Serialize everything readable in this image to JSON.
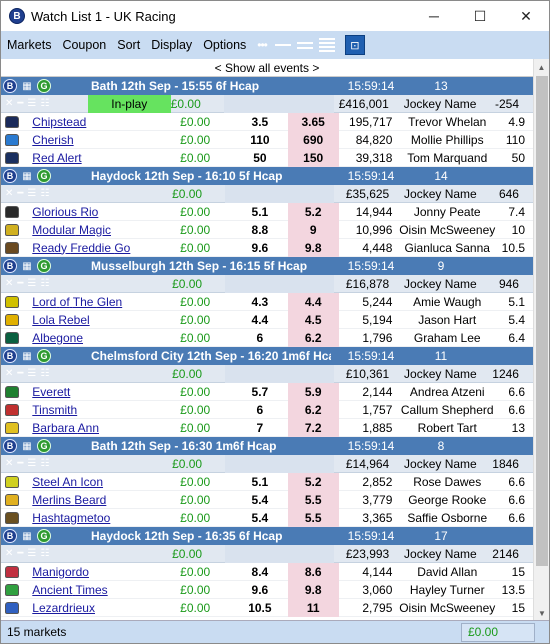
{
  "window": {
    "title": "Watch List 1 - UK Racing",
    "app_icon": "B",
    "minimize_glyph": "─",
    "maximize_glyph": "☐",
    "close_glyph": "✕"
  },
  "menu": [
    "Markets",
    "Coupon",
    "Sort",
    "Display",
    "Options"
  ],
  "toolbar": {
    "icons": [
      "dots-icon",
      "single-line-icon",
      "double-line-icon",
      "list-icon",
      "pin-icon"
    ],
    "pin_glyph": "⊡"
  },
  "show_all": "< Show all events >",
  "races": [
    {
      "name": "Bath 12th Sep - 15:55 6f Hcap",
      "time": "15:59:14",
      "count": "13",
      "in_play": "In-play",
      "pl": "£0.00",
      "matched": "£416,001",
      "jockey_header": "Jockey Name",
      "position": "-254",
      "runners": [
        {
          "name_parts": [
            "Chipstead"
          ],
          "pl": "£0.00",
          "back": "3.5",
          "lay": "3.65",
          "matched": "195,717",
          "jockey": "Trevor Whelan",
          "position": "4.9",
          "silk": "#1a2a5a"
        },
        {
          "name_parts": [
            "Cherish"
          ],
          "pl": "£0.00",
          "back": "110",
          "lay": "690",
          "matched": "84,820",
          "jockey": "Mollie Phillips",
          "position": "110",
          "silk": "#2a7ad0"
        },
        {
          "name_parts": [
            "Red",
            "Alert"
          ],
          "pl": "£0.00",
          "back": "50",
          "lay": "150",
          "matched": "39,318",
          "jockey": "Tom Marquand",
          "position": "50",
          "silk": "#1a3060"
        }
      ]
    },
    {
      "name": "Haydock 12th Sep - 16:10 5f Hcap",
      "time": "15:59:14",
      "count": "14",
      "in_play": "",
      "pl": "£0.00",
      "matched": "£35,625",
      "jockey_header": "Jockey Name",
      "position": "646",
      "runners": [
        {
          "name_parts": [
            "Glorious",
            "Rio"
          ],
          "pl": "£0.00",
          "back": "5.1",
          "lay": "5.2",
          "matched": "14,944",
          "jockey": "Jonny Peate",
          "position": "7.4",
          "silk": "#2a2a2a"
        },
        {
          "name_parts": [
            "Modular",
            "Magic"
          ],
          "pl": "£0.00",
          "back": "8.8",
          "lay": "9",
          "matched": "10,996",
          "jockey": "Oisin McSweeney",
          "position": "10",
          "silk": "#d0b020"
        },
        {
          "name_parts": [
            "Ready",
            "Freddie",
            "Go"
          ],
          "pl": "£0.00",
          "back": "9.6",
          "lay": "9.8",
          "matched": "4,448",
          "jockey": "Gianluca Sanna",
          "position": "10.5",
          "silk": "#6a4a20"
        }
      ]
    },
    {
      "name": "Musselburgh 12th Sep - 16:15 5f Hcap",
      "time": "15:59:14",
      "count": "9",
      "in_play": "",
      "pl": "£0.00",
      "matched": "£16,878",
      "jockey_header": "Jockey Name",
      "position": "946",
      "runners": [
        {
          "name_parts": [
            "Lord",
            "of",
            "The",
            "Glen"
          ],
          "pl": "£0.00",
          "back": "4.3",
          "lay": "4.4",
          "matched": "5,244",
          "jockey": "Amie Waugh",
          "position": "5.1",
          "silk": "#d0c000"
        },
        {
          "name_parts": [
            "Lola",
            "Rebel"
          ],
          "pl": "£0.00",
          "back": "4.4",
          "lay": "4.5",
          "matched": "5,194",
          "jockey": "Jason Hart",
          "position": "5.4",
          "silk": "#e0b000"
        },
        {
          "name_parts": [
            "Albegone"
          ],
          "pl": "£0.00",
          "back": "6",
          "lay": "6.2",
          "matched": "1,796",
          "jockey": "Graham Lee",
          "position": "6.4",
          "silk": "#0a6040"
        }
      ]
    },
    {
      "name": "Chelmsford City 12th Sep - 16:20 1m6f Hca",
      "time": "15:59:14",
      "count": "11",
      "in_play": "",
      "pl": "£0.00",
      "matched": "£10,361",
      "jockey_header": "Jockey Name",
      "position": "1246",
      "runners": [
        {
          "name_parts": [
            "Everett"
          ],
          "pl": "£0.00",
          "back": "5.7",
          "lay": "5.9",
          "matched": "2,144",
          "jockey": "Andrea Atzeni",
          "position": "6.6",
          "silk": "#208030"
        },
        {
          "name_parts": [
            "Tinsmith"
          ],
          "pl": "£0.00",
          "back": "6",
          "lay": "6.2",
          "matched": "1,757",
          "jockey": "Callum Shepherd",
          "position": "6.6",
          "silk": "#c03030"
        },
        {
          "name_parts": [
            "Barbara",
            "Ann"
          ],
          "pl": "£0.00",
          "back": "7",
          "lay": "7.2",
          "matched": "1,885",
          "jockey": "Robert Tart",
          "position": "13",
          "silk": "#e0c020"
        }
      ]
    },
    {
      "name": "Bath 12th Sep - 16:30 1m6f Hcap",
      "time": "15:59:14",
      "count": "8",
      "in_play": "",
      "pl": "£0.00",
      "matched": "£14,964",
      "jockey_header": "Jockey Name",
      "position": "1846",
      "runners": [
        {
          "name_parts": [
            "Steel",
            "An",
            "Icon"
          ],
          "pl": "£0.00",
          "back": "5.1",
          "lay": "5.2",
          "matched": "2,852",
          "jockey": "Rose Dawes",
          "position": "6.6",
          "silk": "#d0d020"
        },
        {
          "name_parts": [
            "Merlins",
            "Beard"
          ],
          "pl": "£0.00",
          "back": "5.4",
          "lay": "5.5",
          "matched": "3,779",
          "jockey": "George Rooke",
          "position": "6.6",
          "silk": "#e0b020"
        },
        {
          "name_parts": [
            "Hashtagmetoo"
          ],
          "pl": "£0.00",
          "back": "5.4",
          "lay": "5.5",
          "matched": "3,365",
          "jockey": "Saffie Osborne",
          "position": "6.6",
          "silk": "#6a5020"
        }
      ]
    },
    {
      "name": "Haydock 12th Sep - 16:35 6f Hcap",
      "time": "15:59:14",
      "count": "17",
      "in_play": "",
      "pl": "£0.00",
      "matched": "£23,993",
      "jockey_header": "Jockey Name",
      "position": "2146",
      "runners": [
        {
          "name_parts": [
            "Manigordo"
          ],
          "pl": "£0.00",
          "back": "8.4",
          "lay": "8.6",
          "matched": "4,144",
          "jockey": "David Allan",
          "position": "15",
          "silk": "#c03040"
        },
        {
          "name_parts": [
            "Ancient",
            "Times"
          ],
          "pl": "£0.00",
          "back": "9.6",
          "lay": "9.8",
          "matched": "3,060",
          "jockey": "Hayley Turner",
          "position": "13.5",
          "silk": "#30a040"
        },
        {
          "name_parts": [
            "Lezardrieux"
          ],
          "pl": "£0.00",
          "back": "10.5",
          "lay": "11",
          "matched": "2,795",
          "jockey": "Oisin McSweeney",
          "position": "15",
          "silk": "#3060c0"
        }
      ]
    }
  ],
  "status": {
    "markets": "15 markets",
    "total_pl": "£0.00"
  },
  "colors": {
    "race_header": "#4a7bb5",
    "menubar": "#c9dcf2",
    "inplay": "#66e35f",
    "lay": "#f3d6df",
    "pl": "#1a9a1a"
  }
}
